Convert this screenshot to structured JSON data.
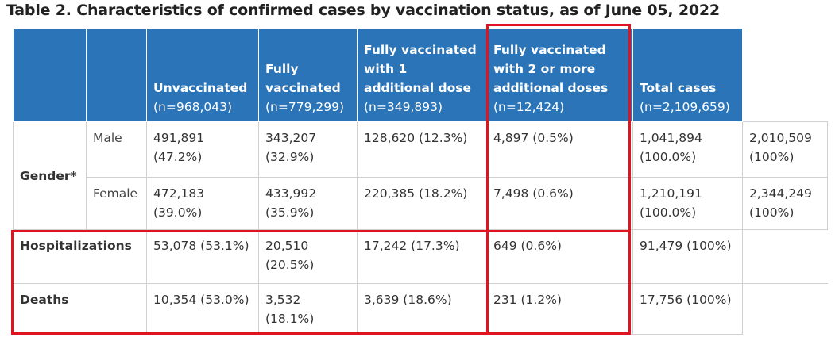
{
  "title": "Table 2. Characteristics of confirmed cases by vaccination status, as of June 05, 2022",
  "headers": [
    {
      "label": "Unvaccinated",
      "n": "(n=968,043)"
    },
    {
      "label": "Fully vaccinated",
      "n": "(n=779,299)"
    },
    {
      "label": "Fully vaccinated with 1 additional dose",
      "n": "(n=349,893)"
    },
    {
      "label": "Fully vaccinated with 2 or more additional doses",
      "n": "(n=12,424)"
    },
    {
      "label": "Total cases",
      "n": "(n=2,109,659)"
    }
  ],
  "gender_label": "Gender*",
  "rows": {
    "male": {
      "label": "Male",
      "cells": [
        "491,891 (47.2%)",
        "343,207 (32.9%)",
        "128,620 (12.3%)",
        "4,897 (0.5%)",
        "1,041,894 (100.0%)",
        "2,010,509 (100%)"
      ]
    },
    "female": {
      "label": "Female",
      "cells": [
        "472,183 (39.0%)",
        "433,992 (35.9%)",
        "220,385 (18.2%)",
        "7,498 (0.6%)",
        "1,210,191 (100.0%)",
        "2,344,249 (100%)"
      ]
    },
    "hospitalizations": {
      "label": "Hospitalizations",
      "cells": [
        "53,078 (53.1%)",
        "20,510 (20.5%)",
        "17,242 (17.3%)",
        "649 (0.6%)",
        "91,479 (100%)"
      ]
    },
    "deaths": {
      "label": "Deaths",
      "cells": [
        "10,354 (53.0%)",
        "3,532 (18.1%)",
        "3,639 (18.6%)",
        "231 (1.2%)",
        "17,756 (100%)"
      ]
    }
  },
  "colors": {
    "header_bg": "#2a74b7",
    "highlight": "#e0141e"
  }
}
